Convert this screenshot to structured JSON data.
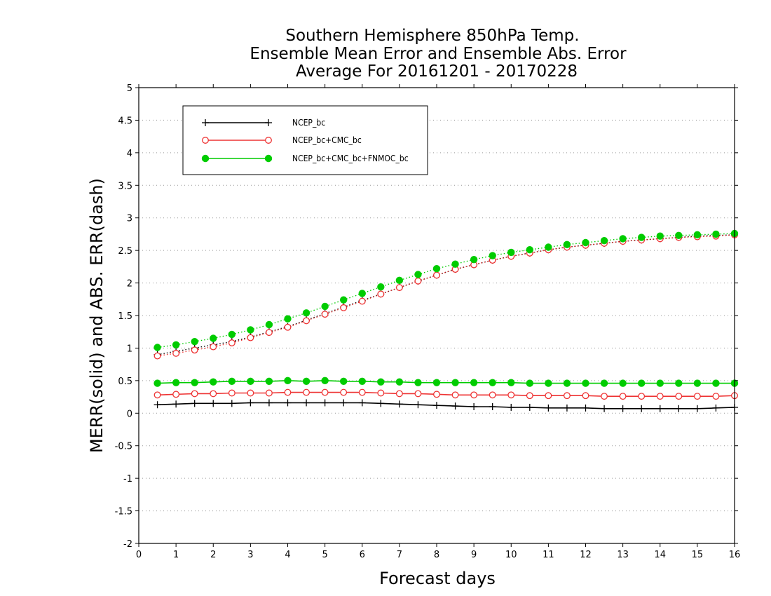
{
  "chart_data": {
    "type": "line",
    "title_lines": [
      "Southern Hemisphere 850hPa Temp.",
      "Ensemble Mean Error and Ensemble Abs. Error",
      "Average For 20161201 - 20170228"
    ],
    "xlabel": "Forecast days",
    "ylabel": "MERR(solid) and ABS. ERR(dash)",
    "xlim": [
      0,
      16
    ],
    "ylim": [
      -2,
      5
    ],
    "x_ticks": [
      "0",
      "1",
      "2",
      "3",
      "4",
      "5",
      "6",
      "7",
      "8",
      "9",
      "10",
      "11",
      "12",
      "13",
      "14",
      "15",
      "16"
    ],
    "y_ticks": [
      "-2",
      "-1.5",
      "-1",
      "-0.5",
      "0",
      "0.5",
      "1",
      "1.5",
      "2",
      "2.5",
      "3",
      "3.5",
      "4",
      "4.5",
      "5"
    ],
    "grid": "horizontal dotted",
    "legend_position": "top-left",
    "x": [
      0.5,
      1,
      1.5,
      2,
      2.5,
      3,
      3.5,
      4,
      4.5,
      5,
      5.5,
      6,
      6.5,
      7,
      7.5,
      8,
      8.5,
      9,
      9.5,
      10,
      10.5,
      11,
      11.5,
      12,
      12.5,
      13,
      13.5,
      14,
      14.5,
      15,
      15.5,
      16
    ],
    "series": [
      {
        "name": "NCEP_bc",
        "color": "#000000",
        "marker": "plus",
        "merr": [
          0.13,
          0.14,
          0.15,
          0.15,
          0.15,
          0.16,
          0.16,
          0.16,
          0.16,
          0.16,
          0.16,
          0.16,
          0.15,
          0.14,
          0.13,
          0.12,
          0.11,
          0.1,
          0.1,
          0.09,
          0.09,
          0.08,
          0.08,
          0.08,
          0.07,
          0.07,
          0.07,
          0.07,
          0.07,
          0.07,
          0.08,
          0.09
        ],
        "abs_err": [
          0.9,
          0.95,
          1.0,
          1.05,
          1.1,
          1.17,
          1.25,
          1.33,
          1.43,
          1.53,
          1.63,
          1.73,
          1.83,
          1.93,
          2.03,
          2.12,
          2.21,
          2.28,
          2.35,
          2.41,
          2.46,
          2.51,
          2.55,
          2.58,
          2.61,
          2.64,
          2.66,
          2.68,
          2.7,
          2.72,
          2.73,
          2.74
        ]
      },
      {
        "name": "NCEP_bc+CMC_bc",
        "color": "#ee3333",
        "marker": "open-circle",
        "merr": [
          0.28,
          0.29,
          0.3,
          0.3,
          0.31,
          0.31,
          0.31,
          0.32,
          0.32,
          0.32,
          0.32,
          0.32,
          0.31,
          0.3,
          0.3,
          0.29,
          0.28,
          0.28,
          0.28,
          0.28,
          0.27,
          0.27,
          0.27,
          0.27,
          0.26,
          0.26,
          0.26,
          0.26,
          0.26,
          0.26,
          0.26,
          0.27
        ],
        "abs_err": [
          0.88,
          0.92,
          0.97,
          1.02,
          1.08,
          1.16,
          1.24,
          1.32,
          1.42,
          1.52,
          1.62,
          1.72,
          1.83,
          1.93,
          2.03,
          2.12,
          2.21,
          2.28,
          2.35,
          2.41,
          2.46,
          2.51,
          2.55,
          2.58,
          2.61,
          2.64,
          2.66,
          2.68,
          2.7,
          2.71,
          2.72,
          2.74
        ]
      },
      {
        "name": "NCEP_bc+CMC_bc+FNMOC_bc",
        "color": "#00cc00",
        "marker": "filled-circle",
        "merr": [
          0.46,
          0.47,
          0.47,
          0.48,
          0.49,
          0.49,
          0.49,
          0.5,
          0.49,
          0.5,
          0.49,
          0.49,
          0.48,
          0.48,
          0.47,
          0.47,
          0.47,
          0.47,
          0.47,
          0.47,
          0.46,
          0.46,
          0.46,
          0.46,
          0.46,
          0.46,
          0.46,
          0.46,
          0.46,
          0.46,
          0.46,
          0.46
        ],
        "abs_err": [
          1.01,
          1.05,
          1.1,
          1.15,
          1.21,
          1.28,
          1.36,
          1.45,
          1.54,
          1.64,
          1.74,
          1.84,
          1.94,
          2.04,
          2.13,
          2.22,
          2.29,
          2.36,
          2.42,
          2.47,
          2.51,
          2.55,
          2.59,
          2.62,
          2.65,
          2.68,
          2.7,
          2.72,
          2.73,
          2.74,
          2.75,
          2.76
        ]
      }
    ]
  }
}
